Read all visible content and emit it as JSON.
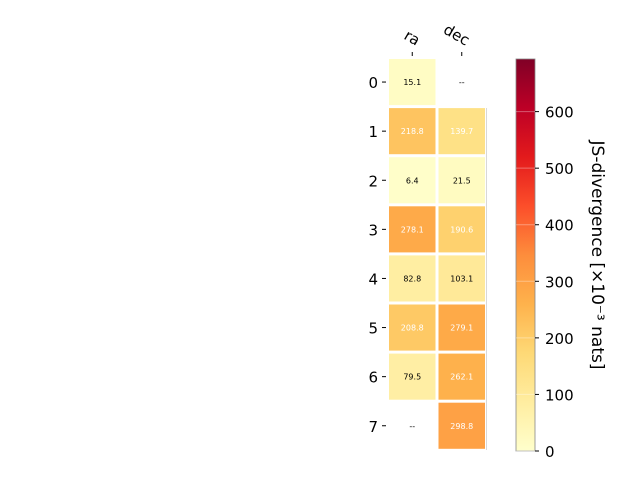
{
  "chart_data": {
    "type": "heatmap",
    "columns": [
      "ra",
      "dec"
    ],
    "rows": [
      "0",
      "1",
      "2",
      "3",
      "4",
      "5",
      "6",
      "7"
    ],
    "values": [
      [
        15.1,
        null
      ],
      [
        218.8,
        139.7
      ],
      [
        6.4,
        21.5
      ],
      [
        278.1,
        190.6
      ],
      [
        82.8,
        103.1
      ],
      [
        208.8,
        279.1
      ],
      [
        79.5,
        262.1
      ],
      [
        null,
        298.8
      ]
    ],
    "cell_labels": [
      [
        "15.1",
        "--"
      ],
      [
        "218.8",
        "139.7"
      ],
      [
        "6.4",
        "21.5"
      ],
      [
        "278.1",
        "190.6"
      ],
      [
        "82.8",
        "103.1"
      ],
      [
        "208.8",
        "279.1"
      ],
      [
        "79.5",
        "262.1"
      ],
      [
        "--",
        "298.8"
      ]
    ],
    "colorbar": {
      "label": "JS-divergence [×10⁻³ nats]",
      "range": [
        0,
        693
      ],
      "ticks": [
        0,
        100,
        200,
        300,
        400,
        500,
        600
      ],
      "colormap": "YlOrRd"
    }
  }
}
